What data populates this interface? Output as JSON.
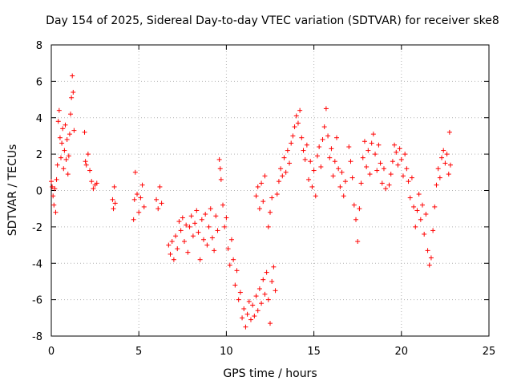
{
  "chart_data": {
    "type": "scatter",
    "title": "Day 154 of 2025, Sidereal Day-to-day VTEC variation (SDTVAR) for receiver ske8",
    "xlabel": "GPS time / hours",
    "ylabel": "SDTVAR / TECUs",
    "xlim": [
      0,
      25
    ],
    "ylim": [
      -8,
      8
    ],
    "xticks": [
      "0",
      "5",
      "10",
      "15",
      "20",
      "25"
    ],
    "yticks": [
      "-8",
      "-6",
      "-4",
      "-2",
      "0",
      "2",
      "4",
      "6",
      "8"
    ],
    "grid": true,
    "marker": "+",
    "series": [
      {
        "name": "SDTVAR",
        "color": "#ff0000",
        "points": [
          [
            0.0,
            0.5
          ],
          [
            0.05,
            0.2
          ],
          [
            0.1,
            -0.3
          ],
          [
            0.15,
            -0.8
          ],
          [
            0.2,
            0.1
          ],
          [
            0.25,
            -1.2
          ],
          [
            0.3,
            0.6
          ],
          [
            0.35,
            1.4
          ],
          [
            0.4,
            3.8
          ],
          [
            0.45,
            4.4
          ],
          [
            0.5,
            2.9
          ],
          [
            0.55,
            1.8
          ],
          [
            0.6,
            2.6
          ],
          [
            0.65,
            3.4
          ],
          [
            0.7,
            1.2
          ],
          [
            0.75,
            2.2
          ],
          [
            0.8,
            3.6
          ],
          [
            0.85,
            1.7
          ],
          [
            0.9,
            2.8
          ],
          [
            0.95,
            0.9
          ],
          [
            1.0,
            1.9
          ],
          [
            1.05,
            3.1
          ],
          [
            1.1,
            4.2
          ],
          [
            1.15,
            5.1
          ],
          [
            1.2,
            6.3
          ],
          [
            1.25,
            5.4
          ],
          [
            1.3,
            3.3
          ],
          [
            1.9,
            3.2
          ],
          [
            1.95,
            1.6
          ],
          [
            2.0,
            1.4
          ],
          [
            2.1,
            2.0
          ],
          [
            2.2,
            1.1
          ],
          [
            2.3,
            0.5
          ],
          [
            2.4,
            0.1
          ],
          [
            2.5,
            0.3
          ],
          [
            2.6,
            0.4
          ],
          [
            3.5,
            -0.5
          ],
          [
            3.55,
            -1.0
          ],
          [
            3.6,
            0.2
          ],
          [
            3.65,
            -0.7
          ],
          [
            4.7,
            -1.6
          ],
          [
            4.75,
            -0.5
          ],
          [
            4.8,
            1.0
          ],
          [
            4.9,
            -0.2
          ],
          [
            5.0,
            -1.2
          ],
          [
            5.1,
            -0.4
          ],
          [
            5.2,
            0.3
          ],
          [
            5.3,
            -0.9
          ],
          [
            6.0,
            -0.5
          ],
          [
            6.1,
            -1.0
          ],
          [
            6.2,
            0.2
          ],
          [
            6.3,
            -0.7
          ],
          [
            6.7,
            -3.0
          ],
          [
            6.8,
            -3.5
          ],
          [
            6.9,
            -2.8
          ],
          [
            7.0,
            -3.8
          ],
          [
            7.1,
            -2.5
          ],
          [
            7.2,
            -3.2
          ],
          [
            7.3,
            -1.7
          ],
          [
            7.4,
            -2.2
          ],
          [
            7.5,
            -1.5
          ],
          [
            7.6,
            -2.8
          ],
          [
            7.7,
            -1.9
          ],
          [
            7.8,
            -3.4
          ],
          [
            7.9,
            -2.0
          ],
          [
            8.0,
            -1.4
          ],
          [
            8.1,
            -2.5
          ],
          [
            8.2,
            -1.8
          ],
          [
            8.3,
            -1.1
          ],
          [
            8.4,
            -2.3
          ],
          [
            8.5,
            -3.8
          ],
          [
            8.6,
            -1.6
          ],
          [
            8.7,
            -2.7
          ],
          [
            8.8,
            -1.3
          ],
          [
            8.9,
            -3.0
          ],
          [
            9.0,
            -2.0
          ],
          [
            9.1,
            -1.0
          ],
          [
            9.2,
            -2.6
          ],
          [
            9.3,
            -3.3
          ],
          [
            9.4,
            -1.4
          ],
          [
            9.5,
            -2.2
          ],
          [
            9.6,
            1.7
          ],
          [
            9.65,
            1.2
          ],
          [
            9.7,
            0.6
          ],
          [
            9.8,
            -0.8
          ],
          [
            9.9,
            -2.0
          ],
          [
            10.0,
            -1.5
          ],
          [
            10.1,
            -3.2
          ],
          [
            10.2,
            -4.1
          ],
          [
            10.3,
            -2.7
          ],
          [
            10.4,
            -3.8
          ],
          [
            10.5,
            -5.2
          ],
          [
            10.6,
            -4.4
          ],
          [
            10.7,
            -6.0
          ],
          [
            10.8,
            -5.6
          ],
          [
            10.9,
            -7.0
          ],
          [
            11.0,
            -6.5
          ],
          [
            11.1,
            -7.5
          ],
          [
            11.2,
            -6.8
          ],
          [
            11.3,
            -6.1
          ],
          [
            11.4,
            -7.1
          ],
          [
            11.5,
            -6.3
          ],
          [
            11.6,
            -6.9
          ],
          [
            11.7,
            -5.8
          ],
          [
            11.8,
            -6.6
          ],
          [
            11.9,
            -5.4
          ],
          [
            12.0,
            -6.2
          ],
          [
            12.1,
            -4.9
          ],
          [
            12.2,
            -5.7
          ],
          [
            12.3,
            -4.5
          ],
          [
            12.4,
            -6.0
          ],
          [
            12.5,
            -7.3
          ],
          [
            12.6,
            -5.0
          ],
          [
            12.7,
            -4.2
          ],
          [
            12.8,
            -5.5
          ],
          [
            11.7,
            -0.3
          ],
          [
            11.8,
            0.2
          ],
          [
            11.9,
            -1.0
          ],
          [
            12.0,
            0.4
          ],
          [
            12.1,
            -0.6
          ],
          [
            12.2,
            0.8
          ],
          [
            12.4,
            -2.0
          ],
          [
            12.5,
            -1.2
          ],
          [
            12.6,
            -0.4
          ],
          [
            12.9,
            -0.2
          ],
          [
            13.0,
            0.5
          ],
          [
            13.1,
            1.2
          ],
          [
            13.2,
            0.8
          ],
          [
            13.3,
            1.8
          ],
          [
            13.4,
            1.0
          ],
          [
            13.5,
            2.2
          ],
          [
            13.6,
            1.5
          ],
          [
            13.7,
            2.6
          ],
          [
            13.8,
            3.0
          ],
          [
            13.9,
            3.5
          ],
          [
            14.0,
            4.1
          ],
          [
            14.1,
            3.7
          ],
          [
            14.2,
            4.4
          ],
          [
            14.3,
            2.9
          ],
          [
            14.4,
            2.2
          ],
          [
            14.5,
            1.7
          ],
          [
            14.6,
            2.5
          ],
          [
            14.7,
            0.6
          ],
          [
            14.8,
            1.6
          ],
          [
            14.9,
            0.2
          ],
          [
            15.0,
            1.1
          ],
          [
            15.1,
            -0.3
          ],
          [
            15.2,
            1.9
          ],
          [
            15.3,
            2.4
          ],
          [
            15.4,
            1.3
          ],
          [
            15.5,
            2.8
          ],
          [
            15.6,
            3.5
          ],
          [
            15.7,
            4.5
          ],
          [
            15.8,
            3.0
          ],
          [
            15.9,
            1.8
          ],
          [
            16.0,
            2.3
          ],
          [
            16.1,
            0.8
          ],
          [
            16.2,
            1.6
          ],
          [
            16.3,
            2.9
          ],
          [
            16.4,
            1.2
          ],
          [
            16.5,
            0.2
          ],
          [
            16.6,
            1.0
          ],
          [
            16.7,
            -0.3
          ],
          [
            16.8,
            0.5
          ],
          [
            17.0,
            2.4
          ],
          [
            17.1,
            1.6
          ],
          [
            17.2,
            0.7
          ],
          [
            17.3,
            -0.8
          ],
          [
            17.4,
            -1.6
          ],
          [
            17.5,
            -2.8
          ],
          [
            17.6,
            -1.0
          ],
          [
            17.7,
            0.4
          ],
          [
            17.8,
            1.8
          ],
          [
            17.9,
            2.7
          ],
          [
            18.0,
            1.3
          ],
          [
            18.1,
            2.2
          ],
          [
            18.2,
            0.9
          ],
          [
            18.3,
            2.6
          ],
          [
            18.4,
            3.1
          ],
          [
            18.5,
            2.0
          ],
          [
            18.6,
            1.1
          ],
          [
            18.7,
            2.5
          ],
          [
            18.8,
            1.5
          ],
          [
            18.9,
            0.4
          ],
          [
            19.0,
            1.2
          ],
          [
            19.1,
            0.1
          ],
          [
            19.3,
            0.3
          ],
          [
            19.4,
            0.9
          ],
          [
            19.5,
            1.6
          ],
          [
            19.6,
            2.5
          ],
          [
            19.7,
            2.1
          ],
          [
            19.8,
            1.4
          ],
          [
            19.9,
            2.3
          ],
          [
            20.0,
            1.7
          ],
          [
            20.1,
            0.8
          ],
          [
            20.2,
            2.0
          ],
          [
            20.3,
            1.2
          ],
          [
            20.4,
            0.5
          ],
          [
            20.5,
            -0.4
          ],
          [
            20.6,
            0.7
          ],
          [
            20.7,
            -0.9
          ],
          [
            20.8,
            -2.0
          ],
          [
            20.9,
            -1.1
          ],
          [
            21.0,
            -0.2
          ],
          [
            21.1,
            -1.6
          ],
          [
            21.2,
            -0.8
          ],
          [
            21.3,
            -2.4
          ],
          [
            21.4,
            -1.3
          ],
          [
            21.5,
            -3.3
          ],
          [
            21.6,
            -4.1
          ],
          [
            21.7,
            -3.7
          ],
          [
            21.8,
            -2.2
          ],
          [
            21.9,
            -0.9
          ],
          [
            22.0,
            0.3
          ],
          [
            22.1,
            1.2
          ],
          [
            22.2,
            0.7
          ],
          [
            22.3,
            1.8
          ],
          [
            22.4,
            2.2
          ],
          [
            22.5,
            1.5
          ],
          [
            22.6,
            2.0
          ],
          [
            22.7,
            0.9
          ],
          [
            22.75,
            3.2
          ],
          [
            22.8,
            1.4
          ]
        ]
      }
    ]
  }
}
